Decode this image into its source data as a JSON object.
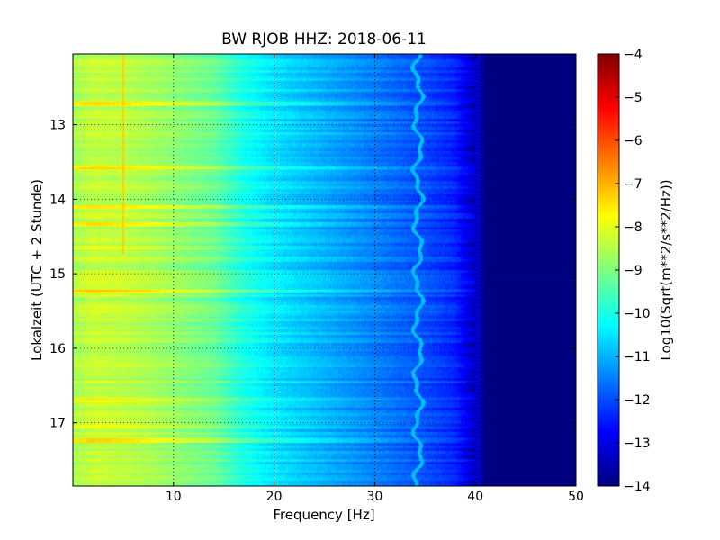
{
  "chart_data": {
    "type": "heatmap",
    "title": "BW RJOB HHZ: 2018-06-11",
    "xlabel": "Frequency [Hz]",
    "ylabel": "Lokalzeit (UTC + 2 Stunde)",
    "xlim": [
      0,
      50
    ],
    "ylim": [
      12.05,
      17.85
    ],
    "y_inverted": true,
    "x_ticks": [
      10,
      20,
      30,
      40,
      50
    ],
    "x_tick_labels": [
      "10",
      "20",
      "30",
      "40",
      "50"
    ],
    "y_ticks": [
      13,
      14,
      15,
      16,
      17
    ],
    "y_tick_labels": [
      "13",
      "14",
      "15",
      "16",
      "17"
    ],
    "grid": true,
    "grid_style": "dotted",
    "colormap": "jet",
    "colorbar": {
      "label": "Log10(Sqrt(m**2/s**2/Hz))",
      "range": [
        -14,
        -4
      ],
      "ticks": [
        -4,
        -5,
        -6,
        -7,
        -8,
        -9,
        -10,
        -11,
        -12,
        -13,
        -14
      ],
      "tick_labels": [
        "−4",
        "−5",
        "−6",
        "−7",
        "−8",
        "−9",
        "−10",
        "−11",
        "−12",
        "−13",
        "−14"
      ]
    },
    "frequency_profile": {
      "frequency_hz": [
        0,
        2,
        5,
        8,
        10,
        14,
        17,
        20,
        25,
        30,
        35,
        38,
        40,
        41,
        50
      ],
      "log_amplitude": [
        -8.6,
        -8.3,
        -8.4,
        -8.6,
        -8.8,
        -9.2,
        -10.0,
        -10.5,
        -11.0,
        -11.5,
        -12.0,
        -12.4,
        -13.0,
        -14.0,
        -14.0
      ]
    },
    "features": {
      "vertical_line_frequency_hz": 5.0,
      "vertical_line_level": -7.3,
      "wandering_line_frequency_hz": 34.3,
      "wandering_line_level": -10.9,
      "noise_floor_above_hz": 41,
      "noise_floor_level": -14.0
    },
    "horizontal_bands": [
      {
        "time": 12.72,
        "level_offset": 0.9
      },
      {
        "time": 13.57,
        "level_offset": 0.8
      },
      {
        "time": 14.1,
        "level_offset": 0.7
      },
      {
        "time": 14.34,
        "level_offset": 1.1
      },
      {
        "time": 14.65,
        "level_offset": 0.6
      },
      {
        "time": 15.24,
        "level_offset": 1.0
      },
      {
        "time": 16.7,
        "level_offset": 0.7
      },
      {
        "time": 17.05,
        "level_offset": 0.6
      },
      {
        "time": 17.24,
        "level_offset": 0.9
      }
    ]
  }
}
